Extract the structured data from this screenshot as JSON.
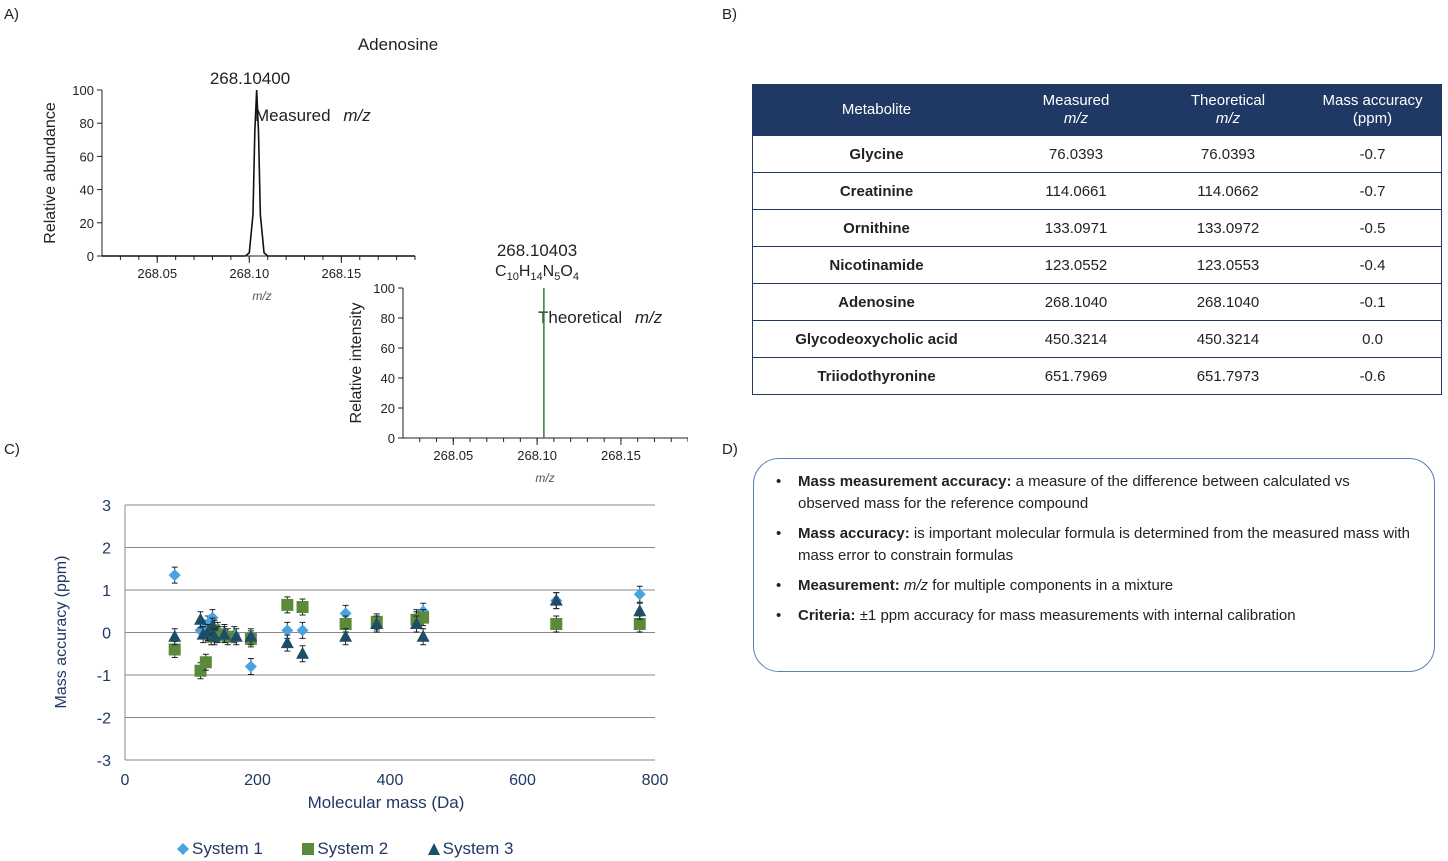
{
  "panel_labels": {
    "a": "A)",
    "b": "B)",
    "c": "C)",
    "d": "D)"
  },
  "colors": {
    "navy": "#1f3864",
    "system1": "#4aa3df",
    "system2": "#5b8a3a",
    "system3": "#1d4e68",
    "theoretical_line": "#2e7d32"
  },
  "chart_data": [
    {
      "type": "line",
      "title": "Adenosine",
      "ylabel": "Relative abundance",
      "xlabel": "m/z",
      "x_ticks": [
        "268.05",
        "268.10",
        "268.15"
      ],
      "y_ticks": [
        "0",
        "20",
        "40",
        "60",
        "80",
        "100"
      ],
      "xlim": [
        268.02,
        268.19
      ],
      "ylim": [
        0,
        100
      ],
      "peak_label": "268.10400",
      "annotation": "Measured",
      "annotation_italic": "m/z",
      "series": [
        {
          "x": [
            268.098,
            268.1,
            268.102,
            268.103,
            268.104,
            268.105,
            268.106,
            268.108,
            268.11
          ],
          "y": [
            0,
            2,
            25,
            75,
            100,
            75,
            25,
            2,
            0
          ]
        }
      ]
    },
    {
      "type": "line",
      "ylabel": "Relative intensity",
      "xlabel": "m/z",
      "x_ticks": [
        "268.05",
        "268.10",
        "268.15"
      ],
      "y_ticks": [
        "0",
        "20",
        "40",
        "60",
        "80",
        "100"
      ],
      "xlim": [
        268.02,
        268.19
      ],
      "ylim": [
        0,
        100
      ],
      "peak_label": "268.10403",
      "formula": {
        "c": "C",
        "c_n": "10",
        "h": "H",
        "h_n": "14",
        "n": "N",
        "n_n": "5",
        "o": "O",
        "o_n": "4"
      },
      "annotation": "Theoretical",
      "annotation_italic": "m/z",
      "stick": {
        "x": 268.10403,
        "y": 100
      }
    },
    {
      "type": "scatter",
      "xlabel": "Molecular mass (Da)",
      "ylabel": "Mass accuracy (ppm)",
      "xlim": [
        0,
        800
      ],
      "ylim": [
        -3,
        3
      ],
      "x_ticks": [
        "0",
        "200",
        "400",
        "600",
        "800"
      ],
      "y_ticks": [
        "3",
        "2",
        "1",
        "0",
        "-1",
        "-2",
        "-3"
      ],
      "grid": true,
      "legend_position": "bottom",
      "series": [
        {
          "name": "System 1",
          "marker": "diamond",
          "x": [
            75,
            114,
            120,
            125,
            132,
            135,
            140,
            150,
            165,
            190,
            245,
            268,
            333,
            380,
            440,
            450,
            651,
            777
          ],
          "y": [
            1.35,
            0.05,
            0.1,
            0.2,
            0.35,
            0.1,
            0.05,
            0.0,
            -0.05,
            -0.8,
            0.05,
            0.05,
            0.45,
            0.2,
            0.35,
            0.5,
            0.75,
            0.9
          ]
        },
        {
          "name": "System 2",
          "marker": "square",
          "x": [
            75,
            114,
            122,
            130,
            135,
            140,
            155,
            190,
            245,
            268,
            333,
            380,
            440,
            450,
            651,
            777
          ],
          "y": [
            -0.4,
            -0.9,
            -0.7,
            -0.1,
            0.05,
            -0.05,
            -0.1,
            -0.15,
            0.65,
            0.6,
            0.2,
            0.25,
            0.3,
            0.35,
            0.2,
            0.2
          ]
        },
        {
          "name": "System 3",
          "marker": "triangle",
          "x": [
            75,
            114,
            118,
            125,
            132,
            135,
            150,
            168,
            190,
            245,
            268,
            333,
            380,
            440,
            450,
            651,
            777
          ],
          "y": [
            -0.1,
            0.3,
            -0.05,
            0.0,
            0.15,
            -0.1,
            -0.05,
            -0.1,
            -0.1,
            -0.25,
            -0.5,
            -0.1,
            0.2,
            0.2,
            -0.1,
            0.75,
            0.5
          ]
        }
      ]
    }
  ],
  "table": {
    "headers": [
      {
        "line1": "Metabolite",
        "line2": ""
      },
      {
        "line1": "Measured",
        "line2": "m/z"
      },
      {
        "line1": "Theoretical",
        "line2": "m/z"
      },
      {
        "line1": "Mass accuracy",
        "line2": "(ppm)"
      }
    ],
    "rows": [
      [
        "Glycine",
        "76.0393",
        "76.0393",
        "-0.7"
      ],
      [
        "Creatinine",
        "114.0661",
        "114.0662",
        "-0.7"
      ],
      [
        "Ornithine",
        "133.0971",
        "133.0972",
        "-0.5"
      ],
      [
        "Nicotinamide",
        "123.0552",
        "123.0553",
        "-0.4"
      ],
      [
        "Adenosine",
        "268.1040",
        "268.1040",
        "-0.1"
      ],
      [
        "Glycodeoxycholic acid",
        "450.3214",
        "450.3214",
        "0.0"
      ],
      [
        "Triiodothyronine",
        "651.7969",
        "651.7973",
        "-0.6"
      ]
    ]
  },
  "notes": [
    {
      "bold": "Mass measurement accuracy:",
      "italic": "",
      "text": " a measure of the difference between calculated vs observed mass for the reference compound"
    },
    {
      "bold": "Mass accuracy:",
      "italic": "",
      "text": " is important molecular formula is determined from the measured mass with mass error to constrain formulas"
    },
    {
      "bold": "Measurement:",
      "italic": " m/z",
      "text": " for multiple components in a mixture"
    },
    {
      "bold": "Criteria:",
      "italic": "",
      "text": " ±1 ppm accuracy for mass measurements with internal calibration"
    }
  ],
  "bullet_char": "•"
}
